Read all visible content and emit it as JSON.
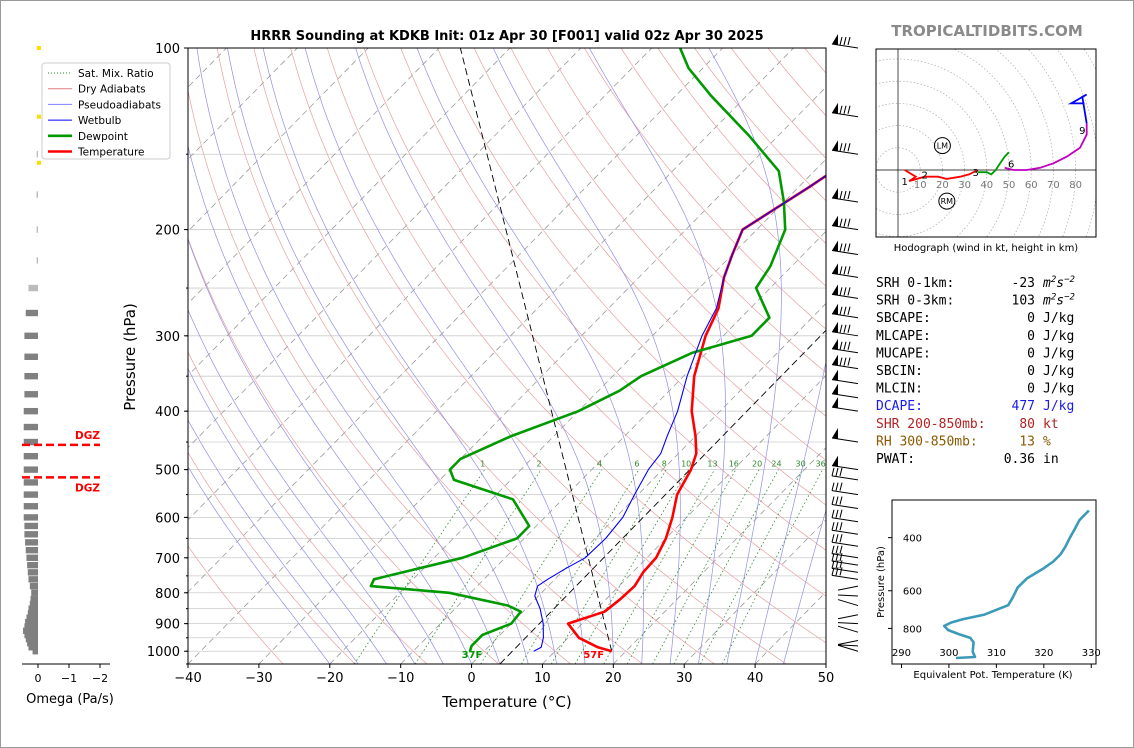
{
  "title": "HRRR Sounding at KDKB Init: 01z Apr 30 [F001] valid 02z Apr 30 2025",
  "brand": "TROPICALTIDBITS.COM",
  "chart_data": [
    {
      "type": "line",
      "name": "skewt",
      "xlabel": "Temperature (°C)",
      "ylabel": "Pressure (hPa)",
      "xlim": [
        -40,
        50
      ],
      "ylim": [
        1050,
        100
      ],
      "log_y": true,
      "x_ticks": [
        -40,
        -30,
        -20,
        -10,
        0,
        10,
        20,
        30,
        40,
        50
      ],
      "x_tick_labels": [
        "−40",
        "−30",
        "−20",
        "−10",
        "0",
        "10",
        "20",
        "30",
        "40",
        "50"
      ],
      "y_ticks": [
        100,
        200,
        300,
        400,
        500,
        600,
        700,
        800,
        900,
        1000
      ],
      "legend": {
        "placement": "top-left",
        "entries": [
          {
            "label": "Sat. Mix. Ratio",
            "color": "#2e8b2e",
            "style": "dotted"
          },
          {
            "label": "Dry Adiabats",
            "color": "#e08080",
            "style": "solid"
          },
          {
            "label": "Pseudoadiabats",
            "color": "#8080ff",
            "style": "solid"
          },
          {
            "label": "Wetbulb",
            "color": "#0000ff",
            "style": "solid"
          },
          {
            "label": "Dewpoint",
            "color": "#009900",
            "style": "thick"
          },
          {
            "label": "Temperature",
            "color": "#ff0000",
            "style": "thick"
          }
        ]
      },
      "mixing_ratio_labels": [
        "1",
        "2",
        "4",
        "6",
        "8",
        "10",
        "13",
        "16",
        "20",
        "24",
        "30",
        "36"
      ],
      "surface_labels": {
        "dewpoint": "37F",
        "temperature": "57F"
      },
      "series": [
        {
          "name": "Temperature",
          "color": "#ff0000",
          "points": [
            [
              1000,
              18
            ],
            [
              985,
              15.5
            ],
            [
              950,
              11.5
            ],
            [
              900,
              8
            ],
            [
              860,
              11.5
            ],
            [
              820,
              12
            ],
            [
              780,
              12.2
            ],
            [
              740,
              11.5
            ],
            [
              700,
              11.3
            ],
            [
              650,
              10
            ],
            [
              600,
              8
            ],
            [
              550,
              5.5
            ],
            [
              500,
              4
            ],
            [
              470,
              2.5
            ],
            [
              440,
              0
            ],
            [
              400,
              -4
            ],
            [
              350,
              -8.5
            ],
            [
              300,
              -12.5
            ],
            [
              270,
              -14.5
            ],
            [
              240,
              -18
            ],
            [
              220,
              -20
            ],
            [
              200,
              -22
            ],
            [
              170,
              -18.5
            ],
            [
              145,
              -15.5
            ],
            [
              125,
              -14
            ],
            [
              108,
              -13.5
            ],
            [
              100,
              -13.7
            ]
          ]
        },
        {
          "name": "Dewpoint",
          "color": "#009900",
          "points": [
            [
              1000,
              -2
            ],
            [
              980,
              -2.5
            ],
            [
              940,
              -2.5
            ],
            [
              900,
              0
            ],
            [
              860,
              -0.3
            ],
            [
              840,
              -3
            ],
            [
              800,
              -13
            ],
            [
              780,
              -25
            ],
            [
              760,
              -25.5
            ],
            [
              700,
              -16
            ],
            [
              650,
              -11
            ],
            [
              620,
              -11
            ],
            [
              560,
              -17
            ],
            [
              520,
              -28
            ],
            [
              500,
              -30
            ],
            [
              480,
              -30
            ],
            [
              440,
              -26
            ],
            [
              400,
              -20
            ],
            [
              370,
              -17
            ],
            [
              350,
              -16
            ],
            [
              320,
              -12
            ],
            [
              300,
              -6
            ],
            [
              280,
              -6
            ],
            [
              250,
              -12
            ],
            [
              230,
              -13
            ],
            [
              200,
              -16
            ],
            [
              180,
              -20
            ],
            [
              160,
              -25
            ],
            [
              140,
              -34
            ],
            [
              120,
              -45
            ],
            [
              108,
              -52
            ],
            [
              100,
              -56
            ]
          ]
        },
        {
          "name": "Wetbulb",
          "color": "#0000ff",
          "points": [
            [
              1000,
              7
            ],
            [
              985,
              7.5
            ],
            [
              950,
              6.5
            ],
            [
              900,
              4.5
            ],
            [
              850,
              2
            ],
            [
              810,
              -0.5
            ],
            [
              780,
              -1.5
            ],
            [
              760,
              -1
            ],
            [
              730,
              0
            ],
            [
              700,
              1.3
            ],
            [
              650,
              1.5
            ],
            [
              600,
              1
            ],
            [
              550,
              -0.5
            ],
            [
              500,
              -2
            ],
            [
              470,
              -2.5
            ],
            [
              440,
              -4
            ],
            [
              400,
              -6
            ],
            [
              350,
              -9.5
            ],
            [
              300,
              -13
            ],
            [
              270,
              -14.8
            ],
            [
              240,
              -18
            ],
            [
              220,
              -20
            ],
            [
              200,
              -22
            ],
            [
              170,
              -18.5
            ],
            [
              145,
              -15.5
            ],
            [
              125,
              -14
            ],
            [
              108,
              -13.5
            ],
            [
              100,
              -13.7
            ]
          ]
        }
      ],
      "parcel_dashed": [
        [
          1000,
          18
        ],
        [
          100,
          -87
        ]
      ]
    },
    {
      "type": "bar",
      "name": "omega",
      "xlabel": "Omega (Pa/s)",
      "x_ticks": [
        0,
        -1,
        -2
      ],
      "x_tick_labels": [
        "0",
        "−1",
        "−2"
      ],
      "dgz_label": "DGZ",
      "dgz_levels": [
        455,
        515
      ],
      "dgz_color": "#ff0000",
      "bar_color": "#808080",
      "small_marks_color": "#ffdd00",
      "levels": [
        1000,
        985,
        970,
        955,
        940,
        925,
        910,
        895,
        880,
        865,
        850,
        835,
        820,
        800,
        780,
        760,
        740,
        720,
        700,
        680,
        660,
        640,
        620,
        600,
        575,
        550,
        525,
        500,
        475,
        450,
        425,
        400,
        375,
        350,
        325,
        300,
        275,
        250,
        225,
        200,
        175,
        150
      ],
      "values": [
        0.08,
        0.14,
        0.16,
        0.18,
        0.2,
        0.22,
        0.2,
        0.19,
        0.17,
        0.15,
        0.14,
        0.12,
        0.11,
        0.1,
        0.12,
        0.14,
        0.15,
        0.16,
        0.17,
        0.18,
        0.19,
        0.2,
        0.2,
        0.21,
        0.21,
        0.21,
        0.21,
        0.21,
        0.21,
        0.21,
        0.21,
        0.21,
        0.2,
        0.2,
        0.2,
        0.2,
        0.18,
        0.14,
        0.02,
        0.02,
        0.02,
        0.02
      ]
    },
    {
      "type": "line",
      "name": "hodograph",
      "xlabel": "Hodograph (wind in kt, height in km)",
      "ring_labels": [
        "10",
        "20",
        "30",
        "40",
        "50",
        "60",
        "70",
        "80"
      ],
      "marker_labels": [
        "LM",
        "RM"
      ],
      "height_labels": [
        "1",
        "2",
        "3",
        "6",
        "9"
      ],
      "segments": [
        {
          "color": "#ff0000",
          "points": [
            [
              3,
              0
            ],
            [
              8,
              -3
            ],
            [
              5,
              -5
            ],
            [
              12,
              -3
            ],
            [
              18,
              -3
            ],
            [
              22,
              -4
            ],
            [
              28,
              -3
            ],
            [
              32,
              -2
            ],
            [
              36,
              0
            ]
          ]
        },
        {
          "color": "#009900",
          "points": [
            [
              36,
              -1
            ],
            [
              40,
              -1
            ],
            [
              42,
              -2
            ],
            [
              44,
              0
            ],
            [
              46,
              3
            ],
            [
              48,
              6
            ],
            [
              50,
              8
            ]
          ]
        },
        {
          "color": "#c000c0",
          "points": [
            [
              48,
              1
            ],
            [
              52,
              0
            ],
            [
              58,
              0
            ],
            [
              64,
              1
            ],
            [
              70,
              3
            ],
            [
              76,
              6
            ],
            [
              82,
              10
            ],
            [
              85,
              16
            ],
            [
              85,
              21
            ]
          ]
        },
        {
          "color": "#0000ff",
          "points": [
            [
              85,
              21
            ],
            [
              84,
              27
            ],
            [
              83,
              33
            ],
            [
              85,
              34
            ],
            [
              78,
              30
            ],
            [
              84,
              30
            ]
          ]
        }
      ]
    },
    {
      "type": "line",
      "name": "theta_e",
      "xlabel": "Equivalent Pot. Temperature (K)",
      "ylabel": "Pressure (hPa)",
      "xlim": [
        288,
        331
      ],
      "x_ticks": [
        290,
        300,
        310,
        320,
        330
      ],
      "y_ticks": [
        400,
        600,
        800
      ],
      "color": "#3a9ab8",
      "points": [
        [
          301.5,
          1003
        ],
        [
          305.5,
          995
        ],
        [
          305,
          955
        ],
        [
          305.2,
          890
        ],
        [
          304.5,
          860
        ],
        [
          302,
          835
        ],
        [
          299.8,
          810
        ],
        [
          299,
          785
        ],
        [
          300.5,
          765
        ],
        [
          303,
          745
        ],
        [
          307.5,
          720
        ],
        [
          312.5,
          670
        ],
        [
          313.5,
          630
        ],
        [
          314.5,
          585
        ],
        [
          316.5,
          545
        ],
        [
          320,
          505
        ],
        [
          322,
          480
        ],
        [
          323.5,
          455
        ],
        [
          324.5,
          430
        ],
        [
          325.5,
          400
        ],
        [
          326.5,
          375
        ],
        [
          327.5,
          350
        ],
        [
          329.5,
          325
        ]
      ]
    }
  ],
  "indices": [
    {
      "label": "SRH 0-1km:",
      "value": "-23",
      "unit": "m2s-2",
      "color": "#000000"
    },
    {
      "label": "SRH 0-3km:",
      "value": "103",
      "unit": "m2s-2",
      "color": "#000000"
    },
    {
      "label": "SBCAPE:",
      "value": "0",
      "unit": "J/kg",
      "color": "#000000"
    },
    {
      "label": "MLCAPE:",
      "value": "0",
      "unit": "J/kg",
      "color": "#000000"
    },
    {
      "label": "MUCAPE:",
      "value": "0",
      "unit": "J/kg",
      "color": "#000000"
    },
    {
      "label": "SBCIN:",
      "value": "0",
      "unit": "J/kg",
      "color": "#000000"
    },
    {
      "label": "MLCIN:",
      "value": "0",
      "unit": "J/kg",
      "color": "#000000"
    },
    {
      "label": "DCAPE:",
      "value": "477",
      "unit": "J/kg",
      "color": "#1a1aee"
    },
    {
      "label": "SHR 200-850mb:",
      "value": "80",
      "unit": "kt",
      "color": "#b22222"
    },
    {
      "label": "RH 300-850mb:",
      "value": "13",
      "unit": "%",
      "color": "#8b5a00"
    },
    {
      "label": "PWAT:",
      "value": "0.36",
      "unit": "in",
      "color": "#000000"
    }
  ]
}
